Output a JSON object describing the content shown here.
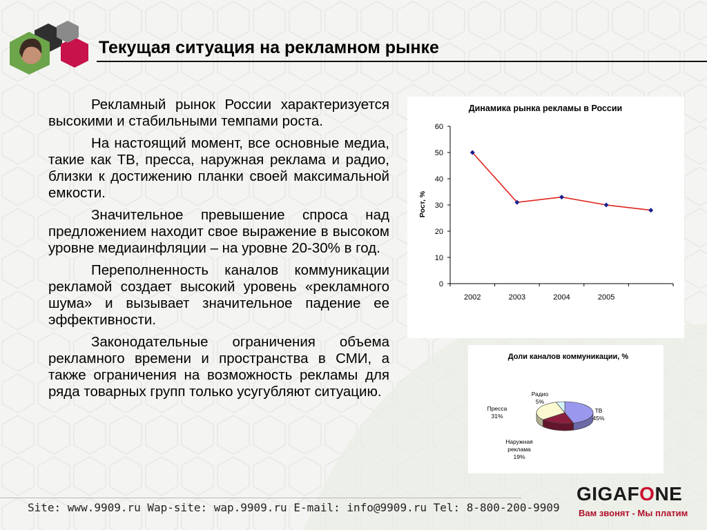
{
  "slide": {
    "title": "Текущая ситуация на рекламном рынке",
    "paragraphs": [
      "Рекламный рынок России характеризуется высокими и стабильными темпами роста.",
      "На настоящий момент, все основные медиа, такие как ТВ, пресса, наружная реклама  и радио, близки к достижению планки своей максимальной емкости.",
      "Значительное превышение спроса над предложением находит свое выражение в высоком уровне медиаинфляции – на уровне 20-30% в год.",
      "Переполненность каналов коммуникации рекламой создает высокий уровень «рекламного шума» и вызывает значительное падение ее эффективности.",
      "Законодательные ограничения объема рекламного времени и пространства в СМИ,  а также ограничения на возможность рекламы для ряда товарных групп только усугубляют ситуацию."
    ]
  },
  "footer": {
    "contacts": "Site: www.9909.ru Wap-site: wap.9909.ru E-mail: info@9909.ru Tel: 8-800-200-9909"
  },
  "brand": {
    "name_part1": "GIGA",
    "name_part2": "F",
    "name_part3": "NE",
    "slogan": "Вам звонят - Мы платим"
  },
  "colors": {
    "line": "#e0231b",
    "marker": "#1b1f8f",
    "tv": "#9a97ee",
    "outdoor": "#8c1f3f",
    "press": "#fbf9cf",
    "radio": "#d5f4f7",
    "brand_red": "#c8102e"
  },
  "chart_data": [
    {
      "type": "line",
      "title": "Динамика рынка рекламы в России",
      "xlabel": "",
      "ylabel": "Рост, %",
      "categories": [
        "2002",
        "2003",
        "2004",
        "2005",
        ""
      ],
      "x": [
        "2002",
        "2003",
        "2004",
        "2005",
        ""
      ],
      "series": [
        {
          "values": [
            50,
            31,
            33,
            30,
            28
          ]
        }
      ],
      "ylim": [
        0,
        60
      ],
      "yticks": [
        "0",
        "10",
        "20",
        "30",
        "40",
        "50",
        "60"
      ],
      "grid": false,
      "legend": "none"
    },
    {
      "type": "pie",
      "title": "Доли каналов коммуникации, %",
      "slices": [
        {
          "label": "ТВ",
          "value_label": "45%",
          "value": 45
        },
        {
          "label": "Наружная реклама",
          "value_label": "19%",
          "value": 19
        },
        {
          "label": "Пресса",
          "value_label": "31%",
          "value": 31
        },
        {
          "label": "Радио",
          "value_label": "5%",
          "value": 5
        }
      ]
    }
  ]
}
